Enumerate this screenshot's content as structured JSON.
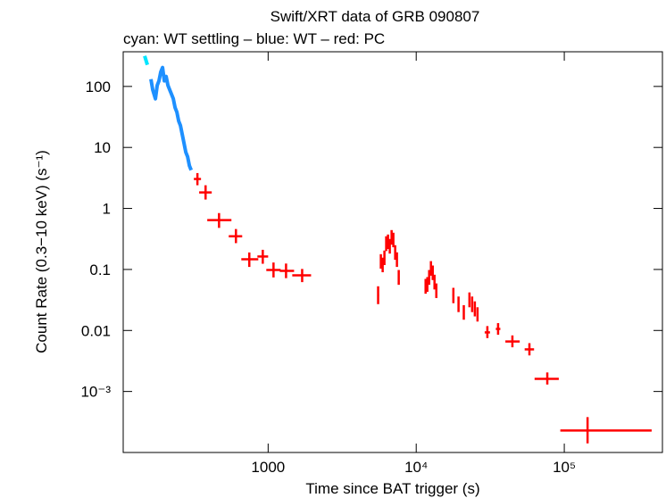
{
  "chart_data": {
    "type": "scatter",
    "title": "Swift/XRT data of GRB 090807",
    "subtitle": "cyan: WT settling – blue: WT – red: PC",
    "x_label": "Time since BAT trigger (s)",
    "y_label": "Count Rate (0.3−10 keV) (s⁻¹)",
    "xscale": "log",
    "yscale": "log",
    "xlim": [
      105,
      460000
    ],
    "ylim": [
      0.0001,
      370
    ],
    "xticks": [
      1000,
      {
        "value": 10000,
        "label": "10⁴"
      },
      {
        "value": 100000,
        "label": "10⁵"
      }
    ],
    "yticks": [
      {
        "value": 0.001,
        "label": "10⁻³"
      },
      0.01,
      0.1,
      1,
      10,
      100
    ],
    "series": [
      {
        "style": "line",
        "color": "#00e5ff",
        "x": [
          146.6,
          152.9
        ],
        "values": [
          316,
          226
        ]
      },
      {
        "style": "line",
        "color": "#1e90ff",
        "x": [
          161.6,
          166.2,
          173.3,
          178.2,
          183.1,
          188.3,
          193.6,
          199.1,
          204.7,
          210.5,
          216.4,
          222.6,
          228.8,
          235.3,
          241.9,
          248.8,
          255.7,
          263.0,
          270.4,
          278.0,
          285.9,
          293.9,
          302.2
        ],
        "values": [
          131.8,
          87.9,
          62.8,
          104.2,
          123.3,
          172.6,
          204.2,
          123.3,
          145.8,
          104.2,
          87.9,
          74.3,
          62.8,
          44.9,
          37.9,
          27.1,
          22.9,
          16.3,
          11.7,
          8.34,
          7.05,
          5.03,
          4.25
        ]
      },
      {
        "style": "errorbar",
        "color": "#ff0000",
        "x": [
          333,
          378,
          466,
          606,
          746,
          920,
          1087,
          1321,
          1697,
          5530,
          5770,
          5935,
          6100,
          6270,
          6450,
          6630,
          6820,
          7010,
          7210,
          7410,
          7620,
          11570,
          11890,
          12230,
          12570,
          12930,
          13290,
          13670,
          17820,
          19310,
          20960,
          22880,
          23860,
          24880,
          25940,
          30230,
          35720,
          44620,
          58140,
          76780,
          143600
        ],
        "xlow": [
          315,
          342,
          388,
          542,
          659,
          846,
          972,
          1198,
          1455,
          5450,
          5690,
          5855,
          6020,
          6190,
          6370,
          6550,
          6740,
          6930,
          7130,
          7330,
          7540,
          11420,
          11740,
          12080,
          12420,
          12780,
          13140,
          13520,
          17570,
          19060,
          20710,
          22580,
          23560,
          24580,
          25640,
          29000,
          34500,
          40000,
          54000,
          63000,
          94000
        ],
        "xhigh": [
          352,
          416,
          565,
          668,
          858,
          1000,
          1215,
          1497,
          1950,
          5610,
          5850,
          6015,
          6180,
          6350,
          6530,
          6710,
          6900,
          7090,
          7290,
          7490,
          7700,
          11720,
          12040,
          12380,
          12720,
          13080,
          13440,
          13820,
          18070,
          19560,
          21210,
          23180,
          24160,
          25180,
          26240,
          31500,
          37000,
          50000,
          62500,
          91800,
          389000
        ],
        "values": [
          3.04,
          1.83,
          0.645,
          0.35,
          0.147,
          0.163,
          0.098,
          0.095,
          0.08,
          0.038,
          0.137,
          0.12,
          0.157,
          0.269,
          0.288,
          0.243,
          0.34,
          0.308,
          0.192,
          0.147,
          0.075,
          0.0535,
          0.0574,
          0.075,
          0.105,
          0.089,
          0.063,
          0.045,
          0.038,
          0.0273,
          0.0195,
          0.0322,
          0.0273,
          0.0232,
          0.0183,
          0.0093,
          0.0106,
          0.0066,
          0.0049,
          0.00161,
          0.000229
        ],
        "ylow": [
          2.4,
          1.4,
          0.48,
          0.27,
          0.11,
          0.124,
          0.074,
          0.072,
          0.062,
          0.027,
          0.103,
          0.09,
          0.118,
          0.2,
          0.216,
          0.182,
          0.255,
          0.231,
          0.144,
          0.11,
          0.056,
          0.04,
          0.043,
          0.056,
          0.079,
          0.067,
          0.047,
          0.034,
          0.028,
          0.02,
          0.015,
          0.024,
          0.02,
          0.017,
          0.014,
          0.0075,
          0.0085,
          0.0053,
          0.0039,
          0.0013,
          0.000141
        ],
        "yhigh": [
          3.8,
          2.4,
          0.84,
          0.46,
          0.19,
          0.21,
          0.13,
          0.125,
          0.102,
          0.053,
          0.178,
          0.156,
          0.204,
          0.35,
          0.374,
          0.316,
          0.442,
          0.4,
          0.25,
          0.191,
          0.098,
          0.07,
          0.075,
          0.098,
          0.137,
          0.116,
          0.082,
          0.059,
          0.05,
          0.036,
          0.026,
          0.042,
          0.036,
          0.03,
          0.024,
          0.0118,
          0.0132,
          0.0083,
          0.0062,
          0.00205,
          0.00038
        ]
      }
    ]
  }
}
